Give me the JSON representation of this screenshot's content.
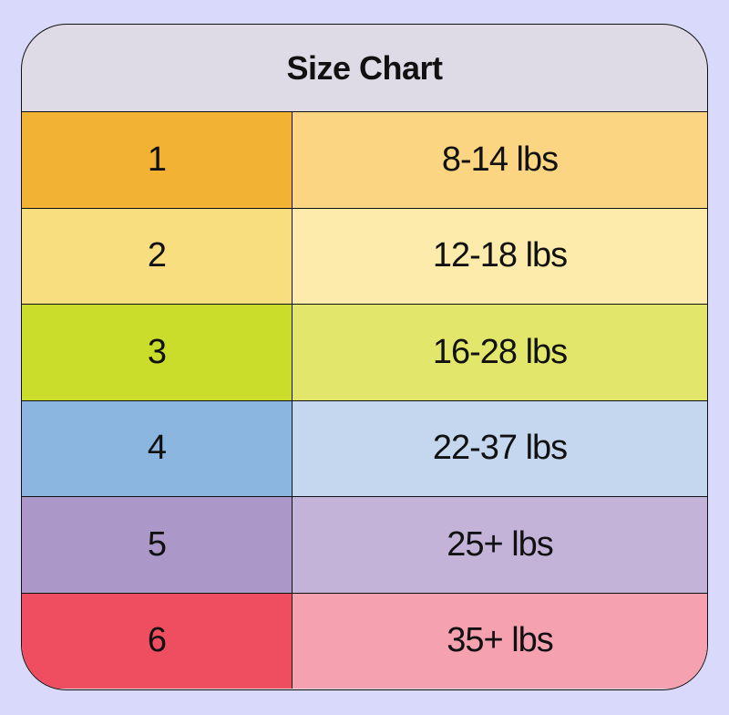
{
  "title": "Size Chart",
  "rows": [
    {
      "size": "1",
      "weight": "8-14 lbs",
      "size_color": "#f2b234",
      "weight_color": "#fcd582"
    },
    {
      "size": "2",
      "weight": "12-18 lbs",
      "size_color": "#f8de7f",
      "weight_color": "#fcebaa"
    },
    {
      "size": "3",
      "weight": "16-28 lbs",
      "size_color": "#cbdd2b",
      "weight_color": "#e2e66a"
    },
    {
      "size": "4",
      "weight": "22-37 lbs",
      "size_color": "#8ab6e0",
      "weight_color": "#c4d7ee"
    },
    {
      "size": "5",
      "weight": "25+ lbs",
      "size_color": "#ab98c8",
      "weight_color": "#c4b3d8"
    },
    {
      "size": "6",
      "weight": "35+ lbs",
      "size_color": "#ef4d60",
      "weight_color": "#f5a1b0"
    }
  ]
}
